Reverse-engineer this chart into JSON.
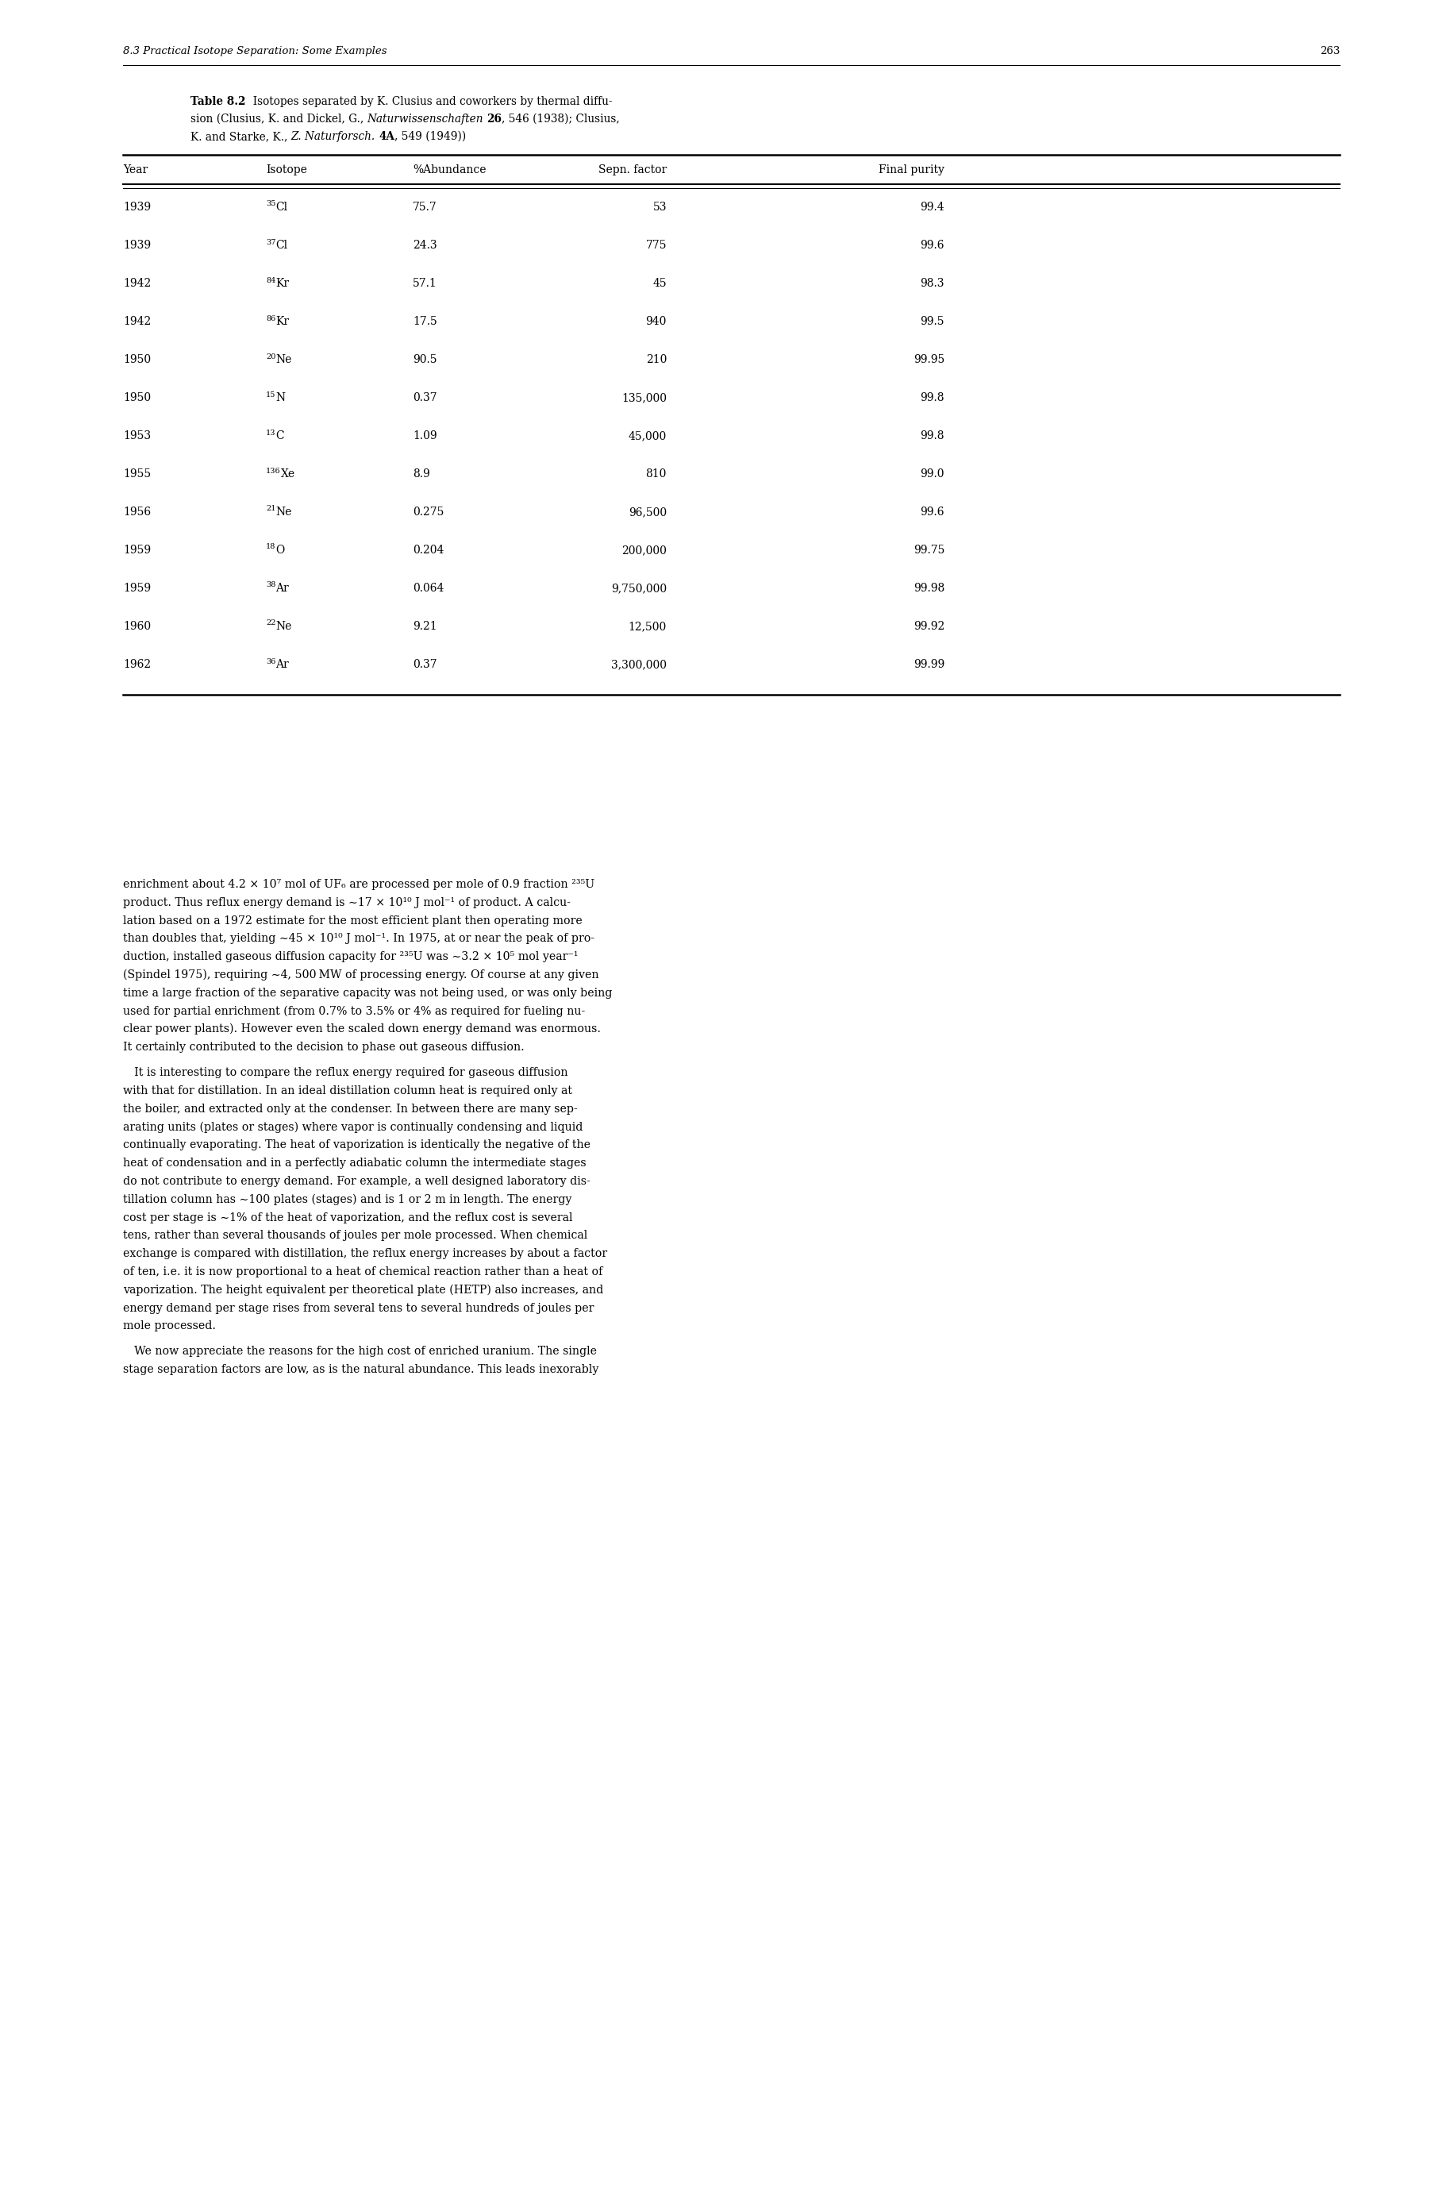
{
  "header_text": "8.3 Practical Isotope Separation: Some Examples",
  "page_number": "263",
  "col_headers": [
    "Year",
    "Isotope",
    "%Abundance",
    "Sepn. factor",
    "Final purity"
  ],
  "rows": [
    [
      "1939",
      "35",
      "Cl",
      "75.7",
      "53",
      "99.4"
    ],
    [
      "1939",
      "37",
      "Cl",
      "24.3",
      "775",
      "99.6"
    ],
    [
      "1942",
      "84",
      "Kr",
      "57.1",
      "45",
      "98.3"
    ],
    [
      "1942",
      "86",
      "Kr",
      "17.5",
      "940",
      "99.5"
    ],
    [
      "1950",
      "20",
      "Ne",
      "90.5",
      "210",
      "99.95"
    ],
    [
      "1950",
      "15",
      "N",
      "0.37",
      "135,000",
      "99.8"
    ],
    [
      "1953",
      "13",
      "C",
      "1.09",
      "45,000",
      "99.8"
    ],
    [
      "1955",
      "136",
      "Xe",
      "8.9",
      "810",
      "99.0"
    ],
    [
      "1956",
      "21",
      "Ne",
      "0.275",
      "96,500",
      "99.6"
    ],
    [
      "1959",
      "18",
      "O",
      "0.204",
      "200,000",
      "99.75"
    ],
    [
      "1959",
      "38",
      "Ar",
      "0.064",
      "9,750,000",
      "99.98"
    ],
    [
      "1960",
      "22",
      "Ne",
      "9.21",
      "12,500",
      "99.92"
    ],
    [
      "1962",
      "36",
      "Ar",
      "0.37",
      "3,300,000",
      "99.99"
    ]
  ],
  "para1_lines": [
    "enrichment about 4.2 × 10⁷ mol of UF₆ are processed per mole of 0.9 fraction ²³⁵U",
    "product. Thus reflux energy demand is ∼17 × 10¹⁰ J mol⁻¹ of product. A calcu-",
    "lation based on a 1972 estimate for the most efficient plant then operating more",
    "than doubles that, yielding ∼45 × 10¹⁰ J mol⁻¹. In 1975, at or near the peak of pro-",
    "duction, installed gaseous diffusion capacity for ²³⁵U was ∼3.2 × 10⁵ mol year⁻¹",
    "(Spindel 1975), requiring ∼4, 500 MW of processing energy. Of course at any given",
    "time a large fraction of the separative capacity was not being used, or was only being",
    "used for partial enrichment (from 0.7% to 3.5% or 4% as required for fueling nu-",
    "clear power plants). However even the scaled down energy demand was enormous.",
    "It certainly contributed to the decision to phase out gaseous diffusion."
  ],
  "para2_lines": [
    " It is interesting to compare the reflux energy required for gaseous diffusion",
    "with that for distillation. In an ideal distillation column heat is required only at",
    "the boiler, and extracted only at the condenser. In between there are many sep-",
    "arating units (plates or stages) where vapor is continually condensing and liquid",
    "continually evaporating. The heat of vaporization is identically the negative of the",
    "heat of condensation and in a perfectly adiabatic column the intermediate stages",
    "do not contribute to energy demand. For example, a well designed laboratory dis-",
    "tillation column has ∼100 plates (stages) and is 1 or 2 m in length. The energy",
    "cost per stage is ∼1% of the heat of vaporization, and the reflux cost is several",
    "tens, rather than several thousands of joules per mole processed. When chemical",
    "exchange is compared with distillation, the reflux energy increases by about a factor",
    "of ten, i.e. it is now proportional to a heat of chemical reaction rather than a heat of",
    "vaporization. The height equivalent per theoretical plate (HETP) also increases, and",
    "energy demand per stage rises from several tens to several hundreds of joules per",
    "mole processed."
  ],
  "para3_lines": [
    " We now appreciate the reasons for the high cost of enriched uranium. The single",
    "stage separation factors are low, as is the natural abundance. This leads inexorably"
  ]
}
